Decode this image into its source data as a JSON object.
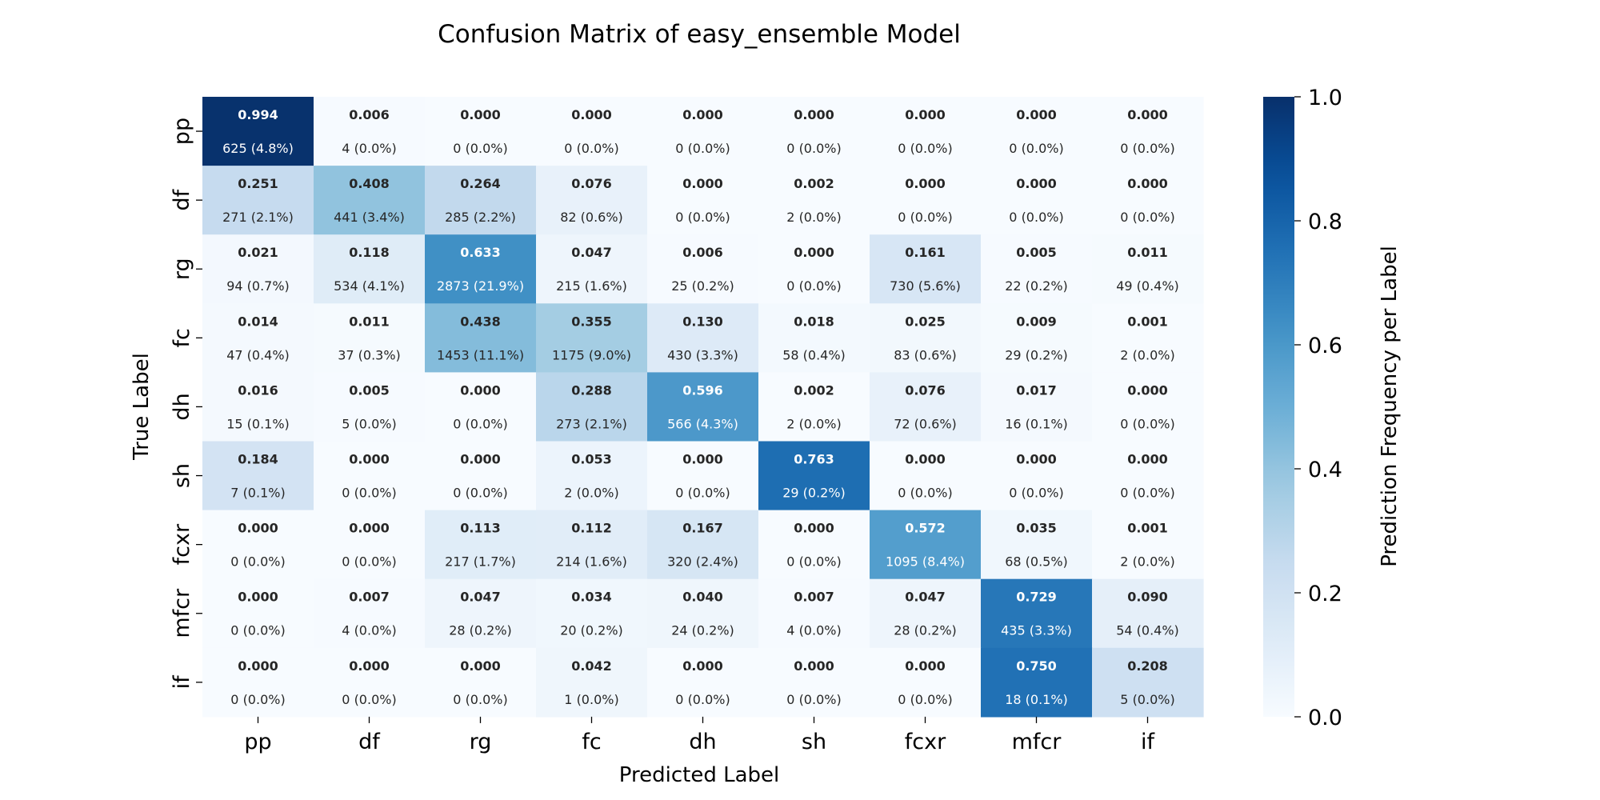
{
  "chart_data": {
    "type": "heatmap",
    "title": "Confusion Matrix of easy_ensemble Model",
    "xlabel": "Predicted Label",
    "ylabel": "True Label",
    "x_categories": [
      "pp",
      "df",
      "rg",
      "fc",
      "dh",
      "sh",
      "fcxr",
      "mfcr",
      "if"
    ],
    "y_categories": [
      "pp",
      "df",
      "rg",
      "fc",
      "dh",
      "sh",
      "fcxr",
      "mfcr",
      "if"
    ],
    "values": [
      [
        0.994,
        0.006,
        0.0,
        0.0,
        0.0,
        0.0,
        0.0,
        0.0,
        0.0
      ],
      [
        0.251,
        0.408,
        0.264,
        0.076,
        0.0,
        0.002,
        0.0,
        0.0,
        0.0
      ],
      [
        0.021,
        0.118,
        0.633,
        0.047,
        0.006,
        0.0,
        0.161,
        0.005,
        0.011
      ],
      [
        0.014,
        0.011,
        0.438,
        0.355,
        0.13,
        0.018,
        0.025,
        0.009,
        0.001
      ],
      [
        0.016,
        0.005,
        0.0,
        0.288,
        0.596,
        0.002,
        0.076,
        0.017,
        0.0
      ],
      [
        0.184,
        0.0,
        0.0,
        0.053,
        0.0,
        0.763,
        0.0,
        0.0,
        0.0
      ],
      [
        0.0,
        0.0,
        0.113,
        0.112,
        0.167,
        0.0,
        0.572,
        0.035,
        0.001
      ],
      [
        0.0,
        0.007,
        0.047,
        0.034,
        0.04,
        0.007,
        0.047,
        0.729,
        0.09
      ],
      [
        0.0,
        0.0,
        0.0,
        0.042,
        0.0,
        0.0,
        0.0,
        0.75,
        0.208
      ]
    ],
    "value_labels": [
      [
        "0.994",
        "0.006",
        "0.000",
        "0.000",
        "0.000",
        "0.000",
        "0.000",
        "0.000",
        "0.000"
      ],
      [
        "0.251",
        "0.408",
        "0.264",
        "0.076",
        "0.000",
        "0.002",
        "0.000",
        "0.000",
        "0.000"
      ],
      [
        "0.021",
        "0.118",
        "0.633",
        "0.047",
        "0.006",
        "0.000",
        "0.161",
        "0.005",
        "0.011"
      ],
      [
        "0.014",
        "0.011",
        "0.438",
        "0.355",
        "0.130",
        "0.018",
        "0.025",
        "0.009",
        "0.001"
      ],
      [
        "0.016",
        "0.005",
        "0.000",
        "0.288",
        "0.596",
        "0.002",
        "0.076",
        "0.017",
        "0.000"
      ],
      [
        "0.184",
        "0.000",
        "0.000",
        "0.053",
        "0.000",
        "0.763",
        "0.000",
        "0.000",
        "0.000"
      ],
      [
        "0.000",
        "0.000",
        "0.113",
        "0.112",
        "0.167",
        "0.000",
        "0.572",
        "0.035",
        "0.001"
      ],
      [
        "0.000",
        "0.007",
        "0.047",
        "0.034",
        "0.040",
        "0.007",
        "0.047",
        "0.729",
        "0.090"
      ],
      [
        "0.000",
        "0.000",
        "0.000",
        "0.042",
        "0.000",
        "0.000",
        "0.000",
        "0.750",
        "0.208"
      ]
    ],
    "count_labels": [
      [
        "625 (4.8%)",
        "4 (0.0%)",
        "0 (0.0%)",
        "0 (0.0%)",
        "0 (0.0%)",
        "0 (0.0%)",
        "0 (0.0%)",
        "0 (0.0%)",
        "0 (0.0%)"
      ],
      [
        "271 (2.1%)",
        "441 (3.4%)",
        "285 (2.2%)",
        "82 (0.6%)",
        "0 (0.0%)",
        "2 (0.0%)",
        "0 (0.0%)",
        "0 (0.0%)",
        "0 (0.0%)"
      ],
      [
        "94 (0.7%)",
        "534 (4.1%)",
        "2873 (21.9%)",
        "215 (1.6%)",
        "25 (0.2%)",
        "0 (0.0%)",
        "730 (5.6%)",
        "22 (0.2%)",
        "49 (0.4%)"
      ],
      [
        "47 (0.4%)",
        "37 (0.3%)",
        "1453 (11.1%)",
        "1175 (9.0%)",
        "430 (3.3%)",
        "58 (0.4%)",
        "83 (0.6%)",
        "29 (0.2%)",
        "2 (0.0%)"
      ],
      [
        "15 (0.1%)",
        "5 (0.0%)",
        "0 (0.0%)",
        "273 (2.1%)",
        "566 (4.3%)",
        "2 (0.0%)",
        "72 (0.6%)",
        "16 (0.1%)",
        "0 (0.0%)"
      ],
      [
        "7 (0.1%)",
        "0 (0.0%)",
        "0 (0.0%)",
        "2 (0.0%)",
        "0 (0.0%)",
        "29 (0.2%)",
        "0 (0.0%)",
        "0 (0.0%)",
        "0 (0.0%)"
      ],
      [
        "0 (0.0%)",
        "0 (0.0%)",
        "217 (1.7%)",
        "214 (1.6%)",
        "320 (2.4%)",
        "0 (0.0%)",
        "1095 (8.4%)",
        "68 (0.5%)",
        "2 (0.0%)"
      ],
      [
        "0 (0.0%)",
        "4 (0.0%)",
        "28 (0.2%)",
        "20 (0.2%)",
        "24 (0.2%)",
        "4 (0.0%)",
        "28 (0.2%)",
        "435 (3.3%)",
        "54 (0.4%)"
      ],
      [
        "0 (0.0%)",
        "0 (0.0%)",
        "0 (0.0%)",
        "1 (0.0%)",
        "0 (0.0%)",
        "0 (0.0%)",
        "0 (0.0%)",
        "18 (0.1%)",
        "5 (0.0%)"
      ]
    ],
    "colorbar": {
      "label": "Prediction Frequency per Label",
      "range": [
        0,
        1
      ],
      "ticks": [
        "0.0",
        "0.2",
        "0.4",
        "0.6",
        "0.8",
        "1.0"
      ],
      "colormap": "Blues"
    },
    "grid": false
  }
}
